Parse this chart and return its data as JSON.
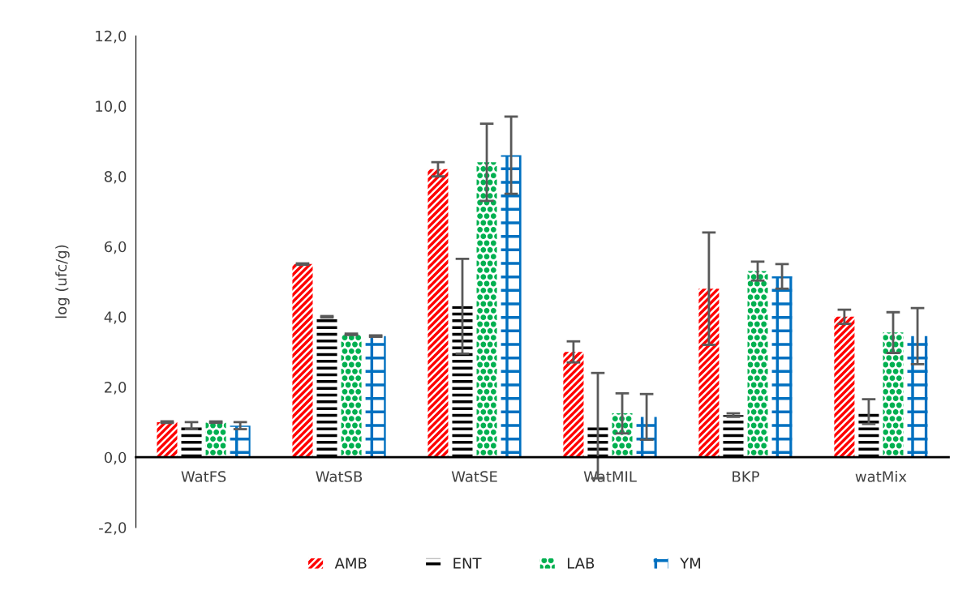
{
  "chart_data": {
    "type": "bar",
    "ylabel": "log (ufc/g)",
    "categories": [
      "WatFS",
      "WatSB",
      "WatSE",
      "WatMIL",
      "BKP",
      "watMix"
    ],
    "series": [
      {
        "name": "AMB",
        "color": "#ff0000",
        "values": [
          1.0,
          5.5,
          8.2,
          3.0,
          4.8,
          4.0
        ],
        "errors": [
          0.02,
          0.02,
          0.2,
          0.3,
          1.6,
          0.2
        ]
      },
      {
        "name": "ENT",
        "color": "#000000",
        "values": [
          0.9,
          4.0,
          4.3,
          0.9,
          1.2,
          1.3
        ],
        "errors": [
          0.1,
          0.02,
          1.35,
          1.5,
          0.05,
          0.35
        ]
      },
      {
        "name": "LAB",
        "color": "#00b050",
        "values": [
          1.0,
          3.5,
          8.4,
          1.25,
          5.3,
          3.55
        ],
        "errors": [
          0.02,
          0.02,
          1.1,
          0.57,
          0.27,
          0.58
        ]
      },
      {
        "name": "YM",
        "color": "#0070c0",
        "values": [
          0.9,
          3.45,
          8.6,
          1.15,
          5.15,
          3.45
        ],
        "errors": [
          0.1,
          0.02,
          1.1,
          0.65,
          0.35,
          0.8
        ]
      }
    ],
    "ylim": [
      -2,
      12
    ],
    "yticks": [
      {
        "value": -2,
        "label": "-2,0"
      },
      {
        "value": 0,
        "label": "0,0"
      },
      {
        "value": 2,
        "label": "2,0"
      },
      {
        "value": 4,
        "label": "4,0"
      },
      {
        "value": 6,
        "label": "6,0"
      },
      {
        "value": 8,
        "label": "8,0"
      },
      {
        "value": 10,
        "label": "10,0"
      },
      {
        "value": 12,
        "label": "12,0"
      }
    ],
    "legend": "bottom"
  }
}
